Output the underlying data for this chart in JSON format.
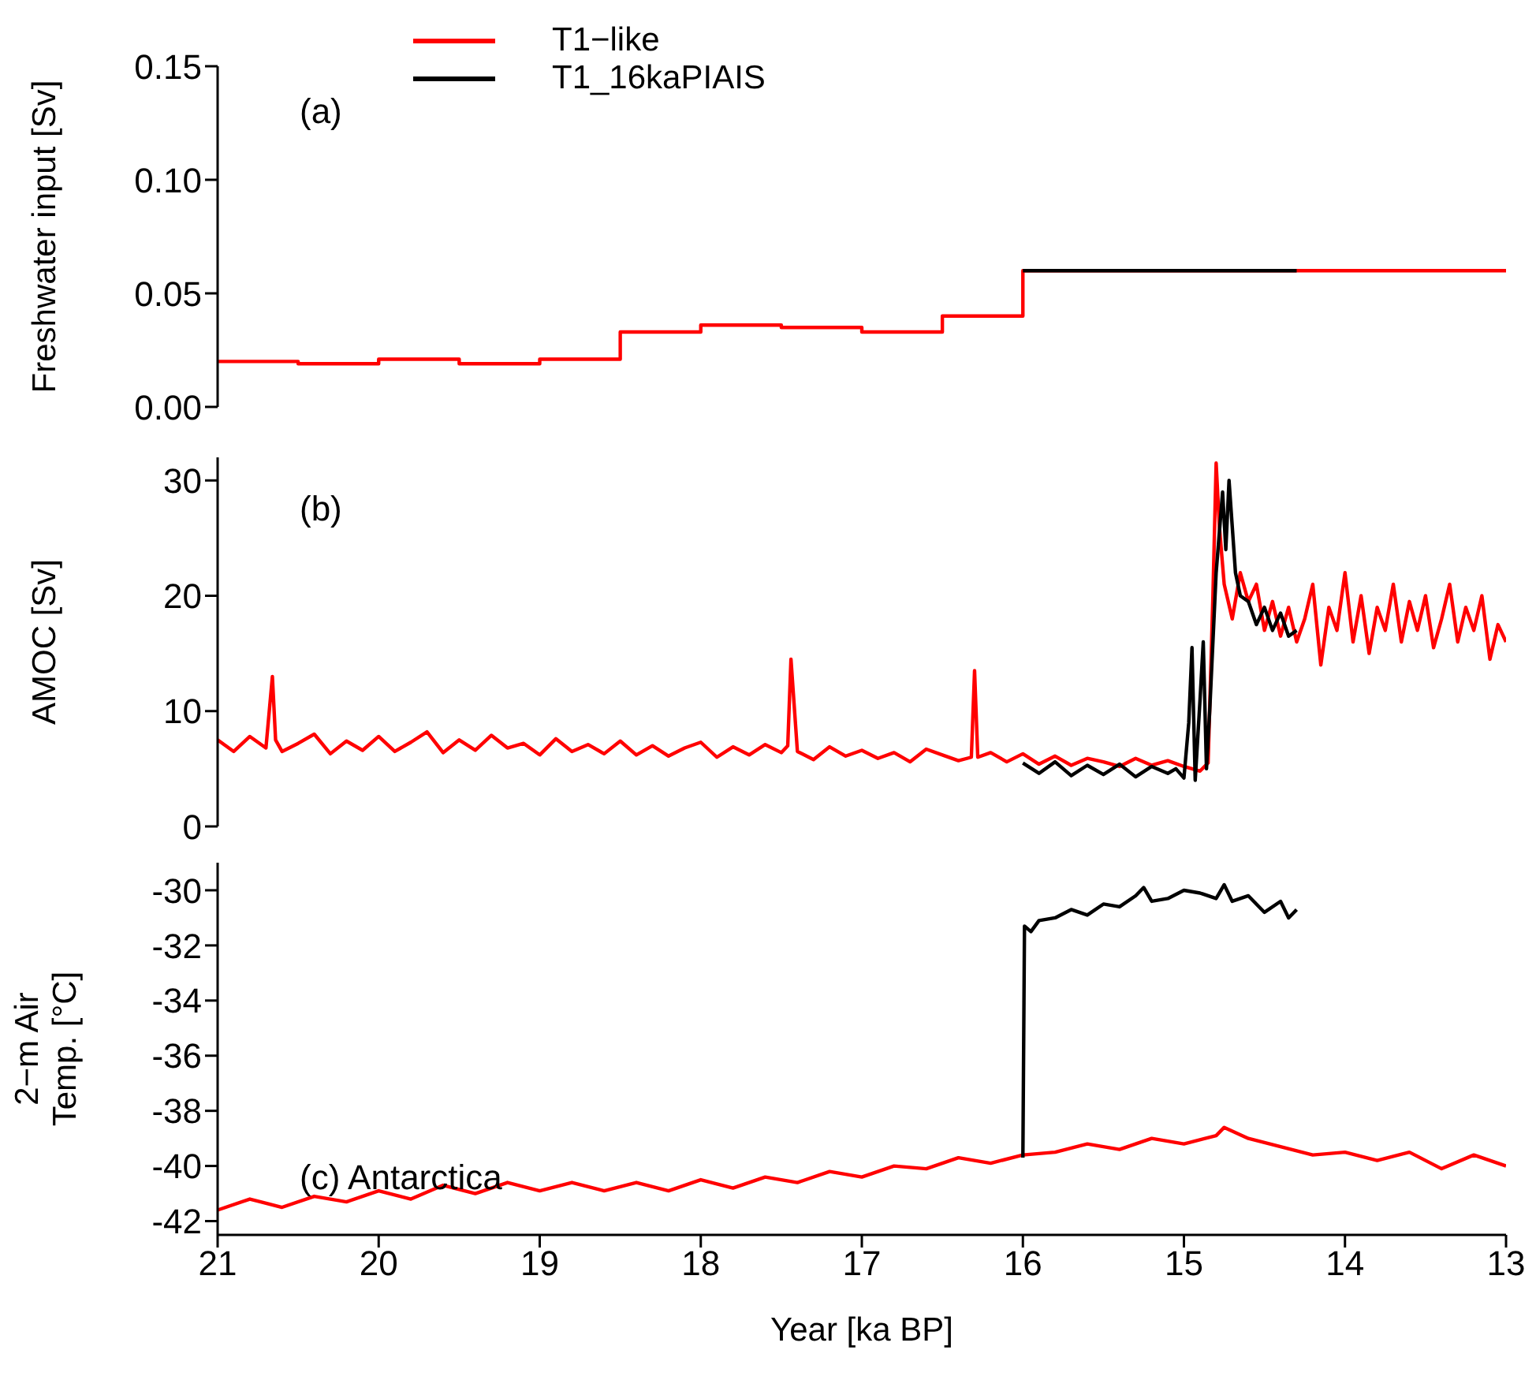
{
  "chart_data": [
    {
      "type": "step",
      "ylabel": "Freshwater input [Sv]",
      "annotations": [
        "(a)"
      ],
      "xlim": [
        21,
        13
      ],
      "xticks": [
        21,
        20,
        19,
        18,
        17,
        16,
        15,
        14,
        13
      ],
      "ylim": [
        0,
        0.15
      ],
      "yticks": [
        {
          "value": 0,
          "label": "0.00"
        },
        {
          "value": 0.05,
          "label": "0.05"
        },
        {
          "value": 0.1,
          "label": "0.10"
        },
        {
          "value": 0.15,
          "label": "0.15"
        }
      ],
      "tick_labels": "y",
      "legend": "top left",
      "grid": false,
      "marker": "none",
      "line_style": "solid",
      "series": [
        {
          "name": "T1−like",
          "color": "#ff0000",
          "x": [
            21,
            20.5,
            20,
            19.5,
            19,
            18.5,
            18,
            17.5,
            17,
            16.5,
            16,
            13
          ],
          "values": [
            0.02,
            0.019,
            0.021,
            0.019,
            0.021,
            0.033,
            0.036,
            0.035,
            0.033,
            0.04,
            0.06,
            0.06
          ]
        },
        {
          "name": "T1_16kaPIAIS",
          "color": "#000000",
          "x": [
            16,
            14.3
          ],
          "values": [
            0.06,
            0.06
          ]
        }
      ]
    },
    {
      "type": "line",
      "ylabel": "AMOC [Sv]",
      "annotations": [
        "(b)"
      ],
      "xlim": [
        21,
        13
      ],
      "xticks": [
        21,
        20,
        19,
        18,
        17,
        16,
        15,
        14,
        13
      ],
      "ylim": [
        0,
        32
      ],
      "yticks": [
        0,
        10,
        20,
        30
      ],
      "tick_labels": "y",
      "grid": false,
      "marker": "none",
      "line_style": "solid",
      "series": [
        {
          "color": "#ff0000",
          "x": [
            21,
            20.9,
            20.8,
            20.7,
            20.66,
            20.64,
            20.6,
            20.5,
            20.4,
            20.3,
            20.2,
            20.1,
            20,
            19.9,
            19.8,
            19.7,
            19.6,
            19.5,
            19.4,
            19.3,
            19.2,
            19.1,
            19,
            18.9,
            18.8,
            18.7,
            18.6,
            18.5,
            18.4,
            18.3,
            18.2,
            18.1,
            18,
            17.9,
            17.8,
            17.7,
            17.6,
            17.5,
            17.46,
            17.44,
            17.4,
            17.3,
            17.2,
            17.1,
            17,
            16.9,
            16.8,
            16.7,
            16.6,
            16.5,
            16.4,
            16.32,
            16.3,
            16.28,
            16.2,
            16.1,
            16,
            15.9,
            15.8,
            15.7,
            15.6,
            15.5,
            15.4,
            15.3,
            15.2,
            15.1,
            15,
            14.9,
            14.85,
            14.82,
            14.8,
            14.78,
            14.75,
            14.7,
            14.65,
            14.6,
            14.55,
            14.5,
            14.45,
            14.4,
            14.35,
            14.3,
            14.25,
            14.2,
            14.15,
            14.1,
            14.05,
            14,
            13.95,
            13.9,
            13.85,
            13.8,
            13.75,
            13.7,
            13.65,
            13.6,
            13.55,
            13.5,
            13.45,
            13.4,
            13.35,
            13.3,
            13.25,
            13.2,
            13.15,
            13.1,
            13.05,
            13
          ],
          "values": [
            7.5,
            6.5,
            7.8,
            6.8,
            13,
            7.5,
            6.5,
            7.2,
            8,
            6.3,
            7.4,
            6.6,
            7.8,
            6.5,
            7.3,
            8.2,
            6.4,
            7.5,
            6.6,
            7.9,
            6.8,
            7.2,
            6.2,
            7.6,
            6.5,
            7.1,
            6.3,
            7.4,
            6.2,
            7,
            6.1,
            6.8,
            7.3,
            6,
            6.9,
            6.2,
            7.1,
            6.4,
            7,
            14.5,
            6.5,
            5.8,
            6.9,
            6.1,
            6.6,
            5.9,
            6.4,
            5.6,
            6.7,
            6.2,
            5.7,
            6,
            13.5,
            6,
            6.4,
            5.6,
            6.3,
            5.4,
            6.1,
            5.3,
            5.9,
            5.6,
            5.2,
            5.9,
            5.3,
            5.7,
            5.2,
            4.8,
            5.5,
            20,
            31.5,
            26,
            21,
            18,
            22,
            19.5,
            21,
            17,
            19.5,
            16.5,
            19,
            16,
            18,
            21,
            14,
            19,
            17,
            22,
            16,
            20,
            15,
            19,
            17,
            21,
            16,
            19.5,
            17,
            20,
            15.5,
            18,
            21,
            16,
            19,
            17,
            20,
            14.5,
            17.5,
            16
          ]
        },
        {
          "color": "#000000",
          "x": [
            16,
            15.9,
            15.8,
            15.7,
            15.6,
            15.5,
            15.4,
            15.3,
            15.2,
            15.1,
            15.05,
            15,
            14.97,
            14.95,
            14.93,
            14.9,
            14.88,
            14.86,
            14.84,
            14.8,
            14.76,
            14.74,
            14.72,
            14.7,
            14.68,
            14.65,
            14.6,
            14.55,
            14.5,
            14.45,
            14.4,
            14.35,
            14.3
          ],
          "values": [
            5.5,
            4.6,
            5.6,
            4.4,
            5.3,
            4.5,
            5.4,
            4.3,
            5.2,
            4.6,
            5,
            4.2,
            9,
            15.5,
            4,
            11,
            16,
            5,
            10,
            22,
            29,
            24,
            30,
            26,
            22,
            20,
            19.5,
            17.5,
            19,
            17,
            18.5,
            16.5,
            17
          ]
        }
      ]
    },
    {
      "type": "line",
      "ylabel": "2−m Air Temp. [°C]",
      "xlabel": "Year [ka BP]",
      "annotations": [
        "(c) Antarctica"
      ],
      "xlim": [
        21,
        13
      ],
      "xticks": [
        21,
        20,
        19,
        18,
        17,
        16,
        15,
        14,
        13
      ],
      "ylim": [
        -42.5,
        -29
      ],
      "yticks": [
        -42,
        -40,
        -38,
        -36,
        -34,
        -32,
        -30
      ],
      "grid": false,
      "marker": "none",
      "line_style": "solid",
      "series": [
        {
          "color": "#ff0000",
          "x": [
            21,
            20.8,
            20.6,
            20.4,
            20.2,
            20,
            19.8,
            19.6,
            19.4,
            19.2,
            19,
            18.8,
            18.6,
            18.4,
            18.2,
            18,
            17.8,
            17.6,
            17.4,
            17.2,
            17,
            16.8,
            16.6,
            16.4,
            16.2,
            16,
            15.8,
            15.6,
            15.4,
            15.2,
            15,
            14.8,
            14.75,
            14.6,
            14.4,
            14.2,
            14,
            13.8,
            13.6,
            13.4,
            13.2,
            13
          ],
          "values": [
            -41.6,
            -41.2,
            -41.5,
            -41.1,
            -41.3,
            -40.9,
            -41.2,
            -40.7,
            -41,
            -40.6,
            -40.9,
            -40.6,
            -40.9,
            -40.6,
            -40.9,
            -40.5,
            -40.8,
            -40.4,
            -40.6,
            -40.2,
            -40.4,
            -40,
            -40.1,
            -39.7,
            -39.9,
            -39.6,
            -39.5,
            -39.2,
            -39.4,
            -39,
            -39.2,
            -38.9,
            -38.6,
            -39,
            -39.3,
            -39.6,
            -39.5,
            -39.8,
            -39.5,
            -40.1,
            -39.6,
            -40
          ]
        },
        {
          "color": "#000000",
          "x": [
            16,
            15.99,
            15.95,
            15.9,
            15.8,
            15.7,
            15.6,
            15.5,
            15.4,
            15.3,
            15.25,
            15.2,
            15.1,
            15,
            14.9,
            14.8,
            14.75,
            14.7,
            14.6,
            14.5,
            14.4,
            14.35,
            14.3
          ],
          "values": [
            -39.7,
            -31.3,
            -31.5,
            -31.1,
            -31,
            -30.7,
            -30.9,
            -30.5,
            -30.6,
            -30.2,
            -29.9,
            -30.4,
            -30.3,
            -30,
            -30.1,
            -30.3,
            -29.8,
            -30.4,
            -30.2,
            -30.8,
            -30.4,
            -31,
            -30.7
          ]
        }
      ]
    }
  ]
}
